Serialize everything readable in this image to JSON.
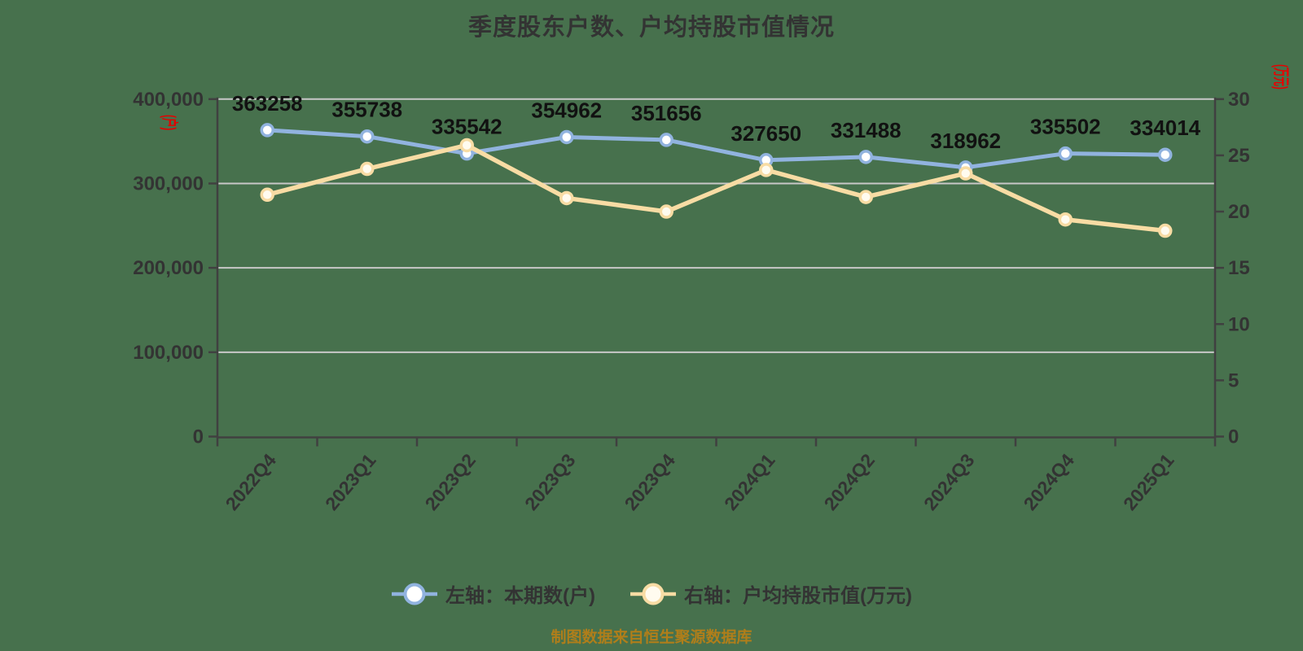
{
  "title": "季度股东户数、户均持股市值情况",
  "source_note": "制图数据来自恒生聚源数据库",
  "left_axis_unit": "(户)",
  "right_axis_unit": "(万元)",
  "colors": {
    "background": "#47714d",
    "series_left": "#91b3df",
    "series_left_marker_fill": "#ffffff",
    "series_right": "#f8dca4",
    "series_right_marker_fill": "#fffbef",
    "grid_line": "#c8c8c8",
    "axis_line": "#404040",
    "tick_label": "#333333",
    "data_label": "#111111",
    "axis_unit": "#e60000",
    "caption": "#b07e1a"
  },
  "legend": [
    {
      "label": "左轴：本期数(户)",
      "color": "#91b3df",
      "marker_fill": "#ffffff"
    },
    {
      "label": "右轴：户均持股市值(万元)",
      "color": "#f8dca4",
      "marker_fill": "#fffbef"
    }
  ],
  "chart_data": {
    "type": "line",
    "title": "季度股东户数、户均持股市值情况",
    "categories": [
      "2022Q4",
      "2023Q1",
      "2023Q2",
      "2023Q3",
      "2023Q4",
      "2024Q1",
      "2024Q2",
      "2024Q3",
      "2024Q4",
      "2025Q1"
    ],
    "series": [
      {
        "name": "左轴：本期数(户)",
        "axis": "left",
        "color": "#91b3df",
        "marker_fill": "#ffffff",
        "values": [
          363258,
          355738,
          335542,
          354962,
          351656,
          327650,
          331488,
          318962,
          335502,
          334014
        ],
        "data_labels": [
          "363258",
          "355738",
          "335542",
          "354962",
          "351656",
          "327650",
          "331488",
          "318962",
          "335502",
          "334014"
        ]
      },
      {
        "name": "右轴：户均持股市值(万元)",
        "axis": "right",
        "color": "#f8dca4",
        "marker_fill": "#fffbef",
        "values": [
          21.5,
          23.8,
          25.9,
          21.2,
          20.0,
          23.7,
          21.3,
          23.4,
          19.3,
          18.3
        ],
        "data_labels": []
      }
    ],
    "left_axis": {
      "min": 0,
      "max": 400000,
      "tick_interval": 100000,
      "tick_labels": [
        "400,000",
        "300,000",
        "200,000",
        "100,000",
        "0"
      ]
    },
    "right_axis": {
      "min": 0,
      "max": 30,
      "tick_interval": 5,
      "tick_labels": [
        "30",
        "25",
        "20",
        "15",
        "10",
        "5",
        "0"
      ]
    },
    "grid": true,
    "legend_position": "bottom"
  }
}
